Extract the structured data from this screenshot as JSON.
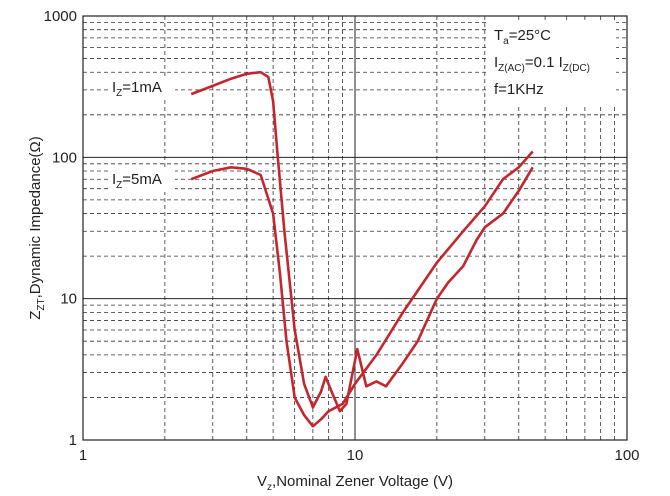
{
  "chart_data": {
    "type": "line",
    "log_x": true,
    "log_y": true,
    "grid": true,
    "minor_grid": true,
    "xlim": [
      1,
      100
    ],
    "ylim": [
      1,
      1000
    ],
    "xticks": [
      1,
      10,
      100
    ],
    "yticks": [
      1,
      10,
      100,
      1000
    ],
    "x_label": [
      {
        "text": "V"
      },
      {
        "text": "z",
        "sub": true
      },
      {
        "text": ",Nominal Zener Voltage (V)"
      }
    ],
    "y_label": [
      {
        "text": "Z"
      },
      {
        "text": "ZT",
        "sub": true
      },
      {
        "text": ",Dynamic Impedance(Ω)"
      }
    ],
    "conditions": [
      [
        {
          "text": "T"
        },
        {
          "text": "a",
          "sub": true
        },
        {
          "text": "=25°C"
        }
      ],
      [
        {
          "text": "I"
        },
        {
          "text": "Z(AC)",
          "sub": true
        },
        {
          "text": "=0.1 I"
        },
        {
          "text": "Z(DC)",
          "sub": true
        }
      ],
      [
        {
          "text": "f=1KHz"
        }
      ]
    ],
    "series": [
      {
        "color": "#c4262e",
        "label": [
          {
            "text": "I"
          },
          {
            "text": "Z",
            "sub": true
          },
          {
            "text": "=1mA"
          }
        ],
        "x": [
          2.5,
          3,
          3.5,
          4,
          4.5,
          4.8,
          5,
          5.2,
          5.5,
          6,
          6.5,
          7,
          7.5,
          7.8,
          8.2,
          8.8,
          9.3,
          10.2,
          11,
          12,
          13,
          15,
          17,
          20,
          22,
          25,
          28,
          30,
          35,
          40,
          45
        ],
        "values": [
          280,
          320,
          360,
          390,
          400,
          370,
          250,
          100,
          30,
          6,
          2.5,
          1.7,
          2.2,
          2.8,
          2.2,
          1.6,
          1.8,
          4.4,
          2.4,
          2.6,
          2.4,
          3.5,
          5,
          10,
          13,
          17,
          26,
          32,
          40,
          58,
          85
        ]
      },
      {
        "color": "#c4262e",
        "label": [
          {
            "text": "I"
          },
          {
            "text": "Z",
            "sub": true
          },
          {
            "text": "=5mA"
          }
        ],
        "x": [
          2.5,
          3,
          3.5,
          4,
          4.5,
          5,
          5.3,
          5.6,
          6,
          6.5,
          7,
          7.5,
          8,
          9,
          10,
          12,
          15,
          20,
          25,
          30,
          35,
          40,
          45
        ],
        "values": [
          70,
          80,
          85,
          83,
          75,
          40,
          15,
          5,
          2,
          1.5,
          1.25,
          1.4,
          1.6,
          1.8,
          2.5,
          4,
          8,
          18,
          30,
          45,
          70,
          85,
          110
        ]
      }
    ]
  }
}
